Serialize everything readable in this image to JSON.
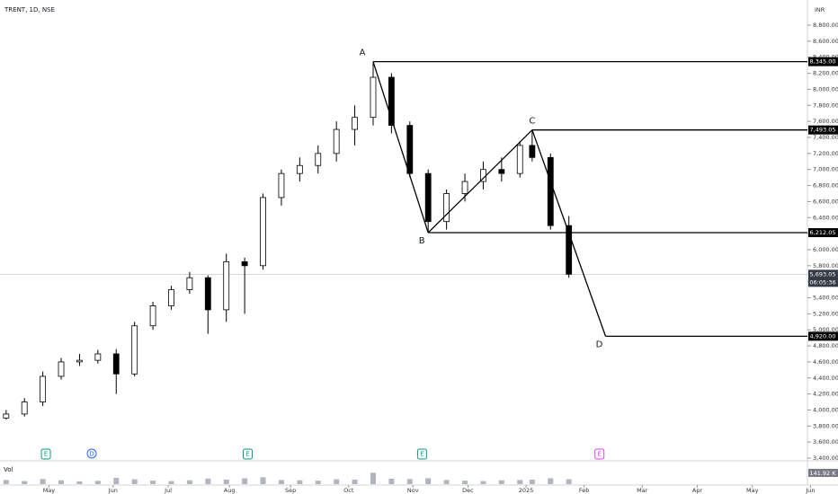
{
  "chart_data": {
    "type": "candlestick",
    "title": "TRENT, 1D, NSE",
    "currency": "INR",
    "x": [
      0,
      6,
      12,
      18,
      24,
      30,
      36,
      42,
      48,
      54,
      60,
      66,
      72,
      78,
      84,
      90,
      96,
      102,
      108,
      114,
      120,
      126,
      132,
      138,
      144,
      150,
      156,
      162,
      168,
      172,
      178,
      184
    ],
    "open": [
      3900,
      3950,
      4100,
      4420,
      4600,
      4620,
      4700,
      4450,
      5050,
      5300,
      5500,
      5650,
      5250,
      5850,
      5800,
      6650,
      6950,
      7050,
      7200,
      7500,
      7650,
      8150,
      7550,
      6950,
      6350,
      6700,
      6850,
      7000,
      6950,
      7300,
      7150,
      6300
    ],
    "high": [
      4000,
      4150,
      4480,
      4650,
      4700,
      4750,
      4760,
      5100,
      5350,
      5550,
      5720,
      5680,
      5950,
      5900,
      6700,
      7000,
      7150,
      7300,
      7600,
      7800,
      8345,
      8200,
      7600,
      7000,
      6750,
      6950,
      7100,
      7150,
      7350,
      7493,
      7200,
      6420
    ],
    "low": [
      3880,
      3920,
      4050,
      4380,
      4550,
      4580,
      4200,
      4420,
      5000,
      5250,
      5450,
      4950,
      5100,
      5200,
      5750,
      6550,
      6850,
      6950,
      7100,
      7300,
      7550,
      7450,
      6900,
      6212,
      6250,
      6600,
      6750,
      6850,
      6900,
      7100,
      6250,
      5650
    ],
    "close": [
      3950,
      4100,
      4420,
      4600,
      4620,
      4700,
      4450,
      5050,
      5300,
      5500,
      5650,
      5250,
      5850,
      5800,
      6650,
      6950,
      7050,
      7200,
      7500,
      7650,
      8150,
      7550,
      6950,
      6350,
      6700,
      6850,
      7000,
      6950,
      7300,
      7150,
      6300,
      5693
    ],
    "up_color": "#ffffff",
    "down_color": "#000000",
    "wick_color": "#000000",
    "xlim": [
      -2,
      262
    ],
    "xticks": [
      {
        "value": 14,
        "label": "May"
      },
      {
        "value": 35,
        "label": "Jun"
      },
      {
        "value": 53,
        "label": "Jul"
      },
      {
        "value": 73,
        "label": "Aug"
      },
      {
        "value": 93,
        "label": "Sep"
      },
      {
        "value": 112,
        "label": "Oct"
      },
      {
        "value": 133,
        "label": "Nov"
      },
      {
        "value": 151,
        "label": "Dec"
      },
      {
        "value": 170,
        "label": "2025"
      },
      {
        "value": 189,
        "label": "Feb"
      },
      {
        "value": 208,
        "label": "Mar"
      },
      {
        "value": 226,
        "label": "Apr"
      },
      {
        "value": 244,
        "label": "May"
      },
      {
        "value": 263,
        "label": "Jun"
      }
    ],
    "ylim": [
      3378,
      9114
    ],
    "yticks": [
      {
        "value": 3400,
        "label": "3,400.00"
      },
      {
        "value": 3600,
        "label": "3,600.00"
      },
      {
        "value": 3800,
        "label": "3,800.00"
      },
      {
        "value": 4000,
        "label": "4,000.00"
      },
      {
        "value": 4200,
        "label": "4,200.00"
      },
      {
        "value": 4400,
        "label": "4,400.00"
      },
      {
        "value": 4600,
        "label": "4,600.00"
      },
      {
        "value": 4800,
        "label": "4,800.00"
      },
      {
        "value": 5000,
        "label": "5,000.00"
      },
      {
        "value": 5200,
        "label": "5,200.00"
      },
      {
        "value": 5400,
        "label": "5,400.00"
      },
      {
        "value": 5600,
        "label": "5,600.00"
      },
      {
        "value": 5800,
        "label": "5,800.00"
      },
      {
        "value": 6000,
        "label": "6,000.00"
      },
      {
        "value": 6200,
        "label": "6,200.00"
      },
      {
        "value": 6400,
        "label": "6,400.00"
      },
      {
        "value": 6600,
        "label": "6,600.00"
      },
      {
        "value": 6800,
        "label": "6,800.00"
      },
      {
        "value": 7000,
        "label": "7,000.00"
      },
      {
        "value": 7200,
        "label": "7,200.00"
      },
      {
        "value": 7400,
        "label": "7,400.00"
      },
      {
        "value": 7600,
        "label": "7,600.00"
      },
      {
        "value": 7800,
        "label": "7,800.00"
      },
      {
        "value": 8000,
        "label": "8,000.00"
      },
      {
        "value": 8200,
        "label": "8,200.00"
      },
      {
        "value": 8400,
        "label": "8,400.00"
      },
      {
        "value": 8600,
        "label": "8,600.00"
      },
      {
        "value": 8800,
        "label": "8,800.00"
      }
    ],
    "last_price": {
      "value": 5693.05,
      "label": "5,693.05"
    },
    "countdown": "06:05:36",
    "pattern": [
      {
        "label": "A",
        "x": 120,
        "y": 8345,
        "price_label": "8,345.00"
      },
      {
        "label": "B",
        "x": 138,
        "y": 6212.05,
        "price_label": "6,212.05"
      },
      {
        "label": "C",
        "x": 172,
        "y": 7493.05,
        "price_label": "7,493.05"
      },
      {
        "label": "D",
        "x": 196,
        "y": 4920,
        "price_label": "4,920.00"
      }
    ],
    "events": [
      {
        "label": "E",
        "x": 13,
        "color": "#089981"
      },
      {
        "label": "D",
        "x": 28,
        "color": "#2962ff"
      },
      {
        "label": "E",
        "x": 79,
        "color": "#089981"
      },
      {
        "label": "E",
        "x": 136,
        "color": "#089981"
      },
      {
        "label": "E",
        "x": 194,
        "color": "#e040fb"
      }
    ],
    "volume": {
      "name": "Vol",
      "values": [
        120,
        90,
        150,
        110,
        80,
        95,
        180,
        140,
        100,
        90,
        110,
        160,
        130,
        170,
        200,
        120,
        110,
        100,
        140,
        130,
        330,
        160,
        150,
        170,
        120,
        100,
        90,
        110,
        120,
        130,
        170,
        141.92
      ],
      "value_label": "141.92 K",
      "ylim": [
        0,
        600
      ],
      "color": "#b2b5be"
    }
  }
}
